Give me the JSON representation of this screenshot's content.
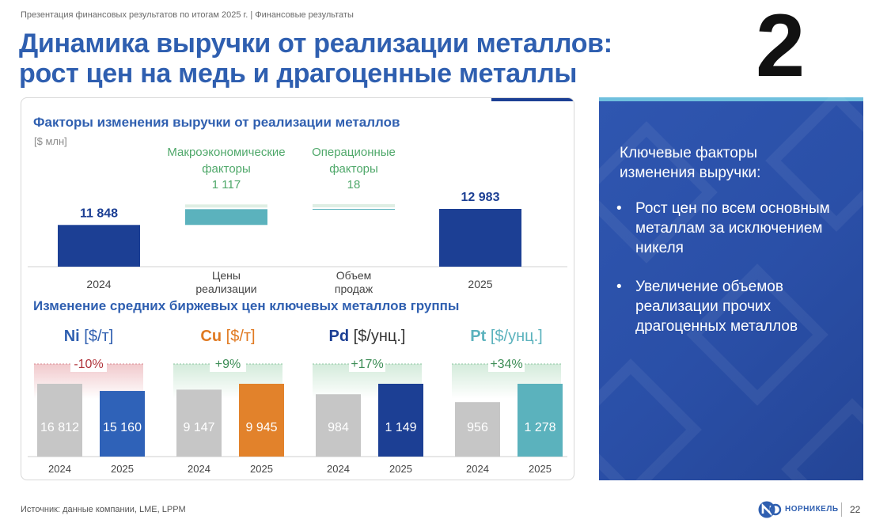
{
  "header": {
    "breadcrumb": "Презентация финансовых результатов по итогам 2025 г. | Финансовые результаты",
    "title_line1": "Динамика выручки от реализации металлов:",
    "title_line2": "рост цен на медь и драгоценные металлы",
    "slide_badge": "2"
  },
  "chart_data": [
    {
      "type": "bar",
      "subtype": "waterfall",
      "title": "Факторы изменения выручки от реализации металлов",
      "unit": "[$ млн]",
      "steps": [
        {
          "kind": "total",
          "x_label": "2024",
          "value": 11848,
          "value_label": "11 848",
          "color": "#1c3f94"
        },
        {
          "kind": "delta",
          "x_label": "Цены реализации",
          "value": 1117,
          "value_label": "1 117",
          "annotation": "Макроэкономические факторы",
          "color": "#5bb2bd"
        },
        {
          "kind": "delta",
          "x_label": "Объем продаж",
          "value": 18,
          "value_label": "18",
          "annotation": "Операционные факторы",
          "color": "#5bb2bd"
        },
        {
          "kind": "total",
          "x_label": "2025",
          "value": 12983,
          "value_label": "12 983",
          "color": "#1c3f94"
        }
      ],
      "annotation_color": "#4fa86a"
    },
    {
      "type": "bar",
      "title": "Изменение средних биржевых цен ключевых металлов группы",
      "categories": [
        "2024",
        "2025"
      ],
      "groups": [
        {
          "symbol": "Ni",
          "unit": "[$/т]",
          "symbol_color": "#2f5fb0",
          "unit_color": "#2f5fb0",
          "change": "-10%",
          "change_color": "#b0333a",
          "change_direction": "down",
          "values": [
            16812,
            15160
          ],
          "labels": [
            "16 812",
            "15 160"
          ],
          "colors": [
            "#c6c6c6",
            "#2f62b8"
          ]
        },
        {
          "symbol": "Cu",
          "unit": "[$/т]",
          "symbol_color": "#e07a22",
          "unit_color": "#e07a22",
          "change": "+9%",
          "change_color": "#3c8c55",
          "change_direction": "up",
          "values": [
            9147,
            9945
          ],
          "labels": [
            "9 147",
            "9 945"
          ],
          "colors": [
            "#c6c6c6",
            "#e2822b"
          ]
        },
        {
          "symbol": "Pd",
          "unit": "[$/унц.]",
          "symbol_color": "#1c3f94",
          "unit_color": "#333333",
          "change": "+17%",
          "change_color": "#3c8c55",
          "change_direction": "up",
          "values": [
            984,
            1149
          ],
          "labels": [
            "984",
            "1 149"
          ],
          "colors": [
            "#c6c6c6",
            "#1c3f94"
          ]
        },
        {
          "symbol": "Pt",
          "unit": "[$/унц.]",
          "symbol_color": "#5bb2bd",
          "unit_color": "#5bb2bd",
          "change": "+34%",
          "change_color": "#3c8c55",
          "change_direction": "up",
          "values": [
            956,
            1278
          ],
          "labels": [
            "956",
            "1 278"
          ],
          "colors": [
            "#c6c6c6",
            "#5bb2bd"
          ]
        }
      ]
    }
  ],
  "side_panel": {
    "heading": "Ключевые факторы изменения выручки:",
    "bullets": [
      "Рост цен по всем основным металлам за исключением никеля",
      "Увеличение объемов реализации прочих драгоценных металлов"
    ],
    "bullet_symbol": "•"
  },
  "footer": {
    "source": "Источник: данные компании, LME, LPPM",
    "logo_text": "НОРНИКЕЛЬ",
    "page_number": "22"
  },
  "colors": {
    "brand_blue": "#2f5fb0",
    "dark_blue": "#1c3f94",
    "teal": "#5bb2bd",
    "positive_green": "#3c8c55",
    "negative_red": "#b0333a"
  }
}
